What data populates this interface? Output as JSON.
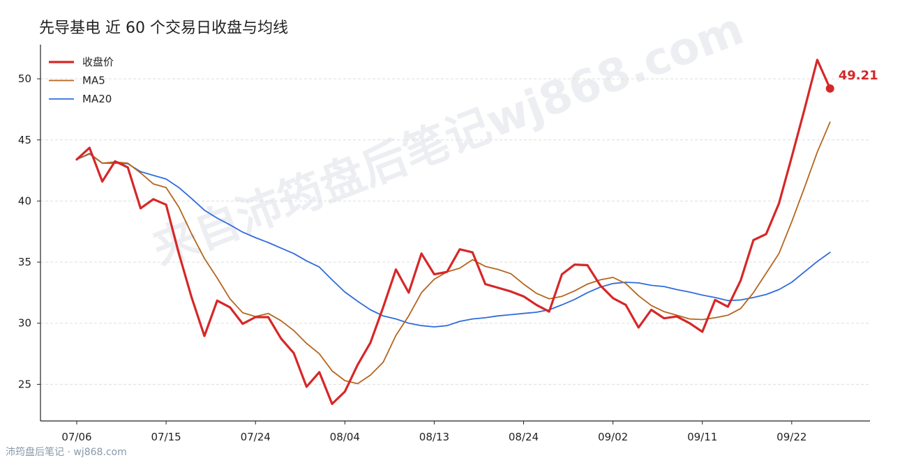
{
  "title": "先导基电 近 60 个交易日收盘与均线",
  "watermark": "来自沛筠盘后笔记wj868.com",
  "footer": "沛筠盘后笔记 · wj868.com",
  "chart_data": {
    "type": "line",
    "title": "先导基电 近 60 个交易日收盘与均线",
    "x_labels": [
      "07/06",
      "07/15",
      "07/24",
      "08/04",
      "08/13",
      "08/24",
      "09/02",
      "09/11",
      "09/22"
    ],
    "x_label_index": [
      0,
      7,
      14,
      21,
      28,
      35,
      42,
      49,
      56
    ],
    "yticks": [
      25,
      30,
      35,
      40,
      45,
      50
    ],
    "ylim": [
      22.0,
      52.8
    ],
    "grid": "horizontal dashed",
    "legend_position": "top-left",
    "last_value_label": "49.21",
    "series": [
      {
        "name": "收盘价",
        "color": "#d62728",
        "width": 3.2,
        "values": [
          43.4,
          44.35,
          41.6,
          43.25,
          42.75,
          39.4,
          40.15,
          39.7,
          35.7,
          32.1,
          28.95,
          31.85,
          31.3,
          29.95,
          30.5,
          30.5,
          28.75,
          27.55,
          24.8,
          26.0,
          23.4,
          24.4,
          26.6,
          28.4,
          31.3,
          34.4,
          32.5,
          35.7,
          34.0,
          34.2,
          36.05,
          35.8,
          33.2,
          32.9,
          32.6,
          32.2,
          31.5,
          30.95,
          34.0,
          34.8,
          34.75,
          33.1,
          32.05,
          31.5,
          29.65,
          31.1,
          30.4,
          30.55,
          30.0,
          29.3,
          31.9,
          31.35,
          33.5,
          36.8,
          37.3,
          39.8,
          43.6,
          47.5,
          51.55,
          49.21
        ]
      },
      {
        "name": "MA5",
        "color": "#b5651d",
        "width": 1.8,
        "values": [
          43.4,
          43.9,
          43.1,
          43.2,
          43.1,
          42.3,
          41.4,
          41.1,
          39.5,
          37.3,
          35.3,
          33.7,
          32.0,
          30.85,
          30.55,
          30.8,
          30.2,
          29.4,
          28.35,
          27.5,
          26.1,
          25.3,
          25.05,
          25.75,
          26.8,
          29.0,
          30.6,
          32.5,
          33.6,
          34.2,
          34.5,
          35.2,
          34.65,
          34.4,
          34.05,
          33.2,
          32.45,
          32.0,
          32.2,
          32.65,
          33.2,
          33.55,
          33.75,
          33.25,
          32.25,
          31.45,
          30.95,
          30.65,
          30.35,
          30.3,
          30.45,
          30.65,
          31.2,
          32.5,
          34.1,
          35.7,
          38.3,
          41.1,
          44.0,
          46.45
        ]
      },
      {
        "name": "MA20",
        "color": "#2f6bdc",
        "width": 1.8,
        "values": [
          43.4,
          43.85,
          43.1,
          43.1,
          43.05,
          42.4,
          42.1,
          41.8,
          41.1,
          40.2,
          39.25,
          38.6,
          38.05,
          37.45,
          37.0,
          36.6,
          36.15,
          35.7,
          35.1,
          34.6,
          33.55,
          32.55,
          31.8,
          31.1,
          30.6,
          30.35,
          30.0,
          29.8,
          29.7,
          29.8,
          30.15,
          30.35,
          30.45,
          30.6,
          30.7,
          30.8,
          30.9,
          31.1,
          31.5,
          31.95,
          32.5,
          32.95,
          33.25,
          33.35,
          33.3,
          33.1,
          33.0,
          32.75,
          32.55,
          32.3,
          32.1,
          31.85,
          31.9,
          32.1,
          32.35,
          32.75,
          33.35,
          34.2,
          35.05,
          35.8
        ]
      }
    ]
  }
}
